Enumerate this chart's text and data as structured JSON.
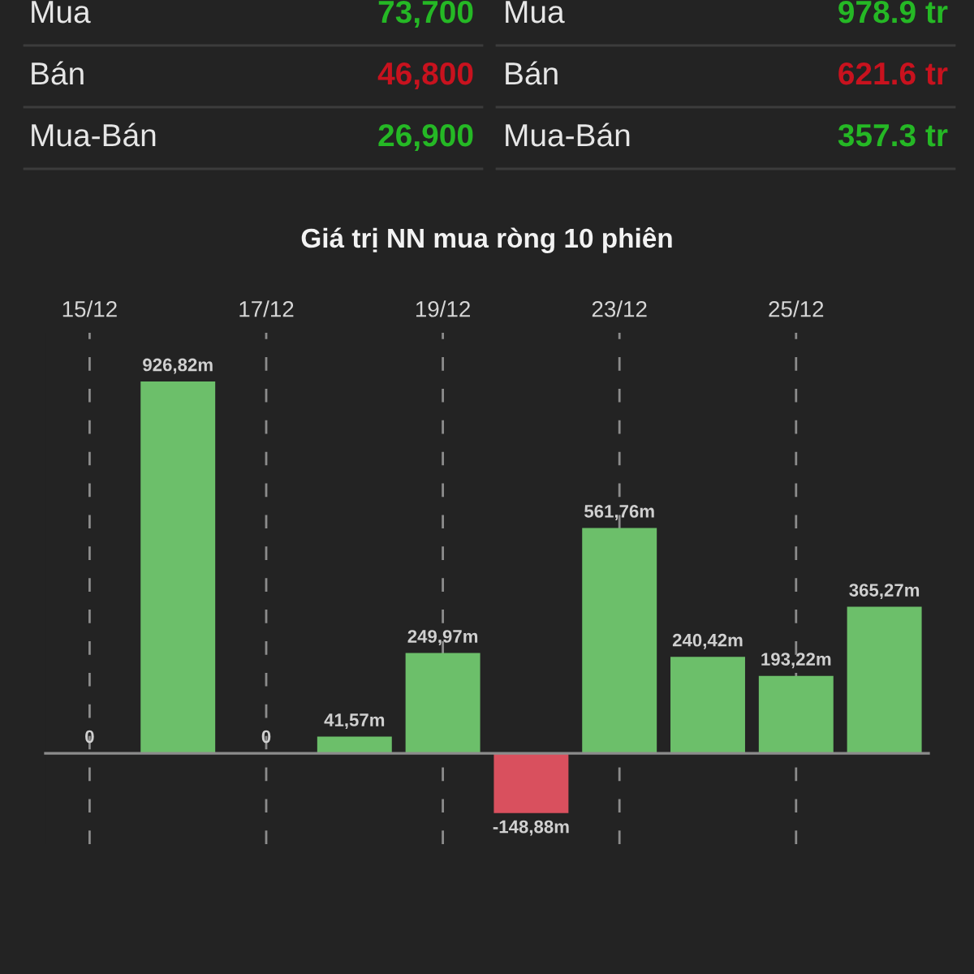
{
  "chart_data": {
    "type": "bar",
    "title": "Giá trị NN mua ròng 10 phiên",
    "categories": [
      "15/12",
      null,
      "17/12",
      null,
      "19/12",
      null,
      "23/12",
      null,
      "25/12",
      null
    ],
    "values": [
      0,
      926.82,
      0,
      41.57,
      249.97,
      -148.88,
      561.76,
      240.42,
      193.22,
      365.27
    ],
    "colors": [
      "#6cbf6a",
      "#6cbf6a",
      "#6cbf6a",
      "#6cbf6a",
      "#6cbf6a",
      "#d9505e",
      "#6cbf6a",
      "#6cbf6a",
      "#6cbf6a",
      "#6cbf6a"
    ],
    "value_labels": [
      "0",
      "926,82m",
      "0",
      "41,57m",
      "249,97m",
      "-148,88m",
      "561,76m",
      "240,42m",
      "193,22m",
      "365,27m"
    ],
    "grid": "x",
    "tick_labels": "x",
    "annotations": [
      "Mua",
      "73,700",
      "Mua",
      "978.9 tr",
      "Bán",
      "46,800",
      "Bán",
      "621.6 tr",
      "Mua-Bán",
      "26,900",
      "Mua-Bán",
      "357.3 tr"
    ]
  }
}
